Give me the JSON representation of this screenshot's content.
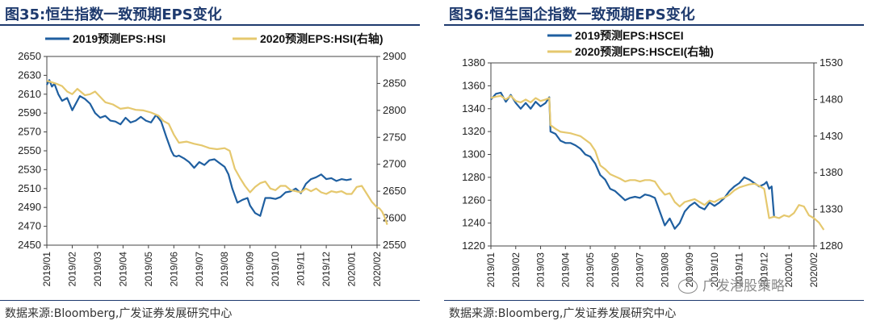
{
  "watermark": "广发港股策略",
  "chart_data": [
    {
      "type": "line",
      "title": "图35:恒生指数一致预期EPS变化",
      "source": "数据来源:Bloomberg,广发证券发展研究中心",
      "x_ticks": [
        "2019/01",
        "2019/02",
        "2019/03",
        "2019/04",
        "2019/05",
        "2019/06",
        "2019/07",
        "2019/08",
        "2019/09",
        "2019/10",
        "2019/11",
        "2019/12",
        "2020/01",
        "2020/02"
      ],
      "y_left": {
        "min": 2450,
        "max": 2650,
        "ticks": [
          2650,
          2630,
          2610,
          2590,
          2570,
          2550,
          2530,
          2510,
          2490,
          2470,
          2450
        ]
      },
      "y_right": {
        "min": 2550,
        "max": 2900,
        "ticks": [
          2900,
          2850,
          2800,
          2750,
          2700,
          2650,
          2600,
          2550
        ]
      },
      "series": [
        {
          "name": "2019预测EPS:HSI",
          "axis": "left",
          "color": "#1f5fa0",
          "x": [
            0,
            0.1,
            0.2,
            0.3,
            0.45,
            0.6,
            0.8,
            1.0,
            1.3,
            1.5,
            1.7,
            1.9,
            2.1,
            2.3,
            2.5,
            2.7,
            2.9,
            3.1,
            3.3,
            3.5,
            3.7,
            3.9,
            4.1,
            4.3,
            4.5,
            4.7,
            4.9,
            5.0,
            5.1,
            5.2,
            5.4,
            5.6,
            5.8,
            6.0,
            6.2,
            6.4,
            6.6,
            6.8,
            7.0,
            7.15,
            7.3,
            7.5,
            7.7,
            7.9,
            8.0,
            8.2,
            8.4,
            8.6,
            8.8,
            9.0,
            9.2,
            9.4,
            9.6,
            9.8,
            10.0,
            10.2,
            10.4,
            10.6,
            10.8,
            11.0,
            11.2,
            11.4,
            11.6,
            11.8,
            12.0
          ],
          "values": [
            2620,
            2625,
            2618,
            2621,
            2610,
            2603,
            2606,
            2593,
            2608,
            2605,
            2600,
            2590,
            2585,
            2587,
            2582,
            2581,
            2578,
            2585,
            2580,
            2582,
            2586,
            2582,
            2580,
            2588,
            2581,
            2565,
            2550,
            2545,
            2544,
            2545,
            2542,
            2538,
            2532,
            2538,
            2535,
            2540,
            2541,
            2537,
            2533,
            2525,
            2510,
            2495,
            2498,
            2500,
            2492,
            2484,
            2481,
            2500,
            2500,
            2499,
            2501,
            2506,
            2507,
            2510,
            2505,
            2515,
            2520,
            2522,
            2525,
            2520,
            2521,
            2518,
            2520,
            2519,
            2520
          ]
        },
        {
          "name": "2020预测EPS:HSI(右轴)",
          "axis": "right",
          "color": "#e5c86e",
          "x": [
            0,
            0.2,
            0.4,
            0.6,
            0.8,
            1.0,
            1.2,
            1.5,
            1.7,
            1.9,
            2.1,
            2.3,
            2.6,
            2.9,
            3.2,
            3.5,
            3.8,
            4.1,
            4.4,
            4.6,
            4.8,
            5.0,
            5.2,
            5.5,
            5.8,
            6.1,
            6.4,
            6.7,
            7.0,
            7.2,
            7.4,
            7.6,
            7.8,
            8.0,
            8.2,
            8.4,
            8.6,
            8.8,
            9.0,
            9.2,
            9.4,
            9.6,
            9.8,
            10.0,
            10.2,
            10.4,
            10.6,
            10.8,
            11.0,
            11.2,
            11.4,
            11.6,
            11.8,
            12.0,
            12.2,
            12.4,
            12.6,
            12.8,
            13.0,
            13.1,
            13.2,
            13.3,
            13.4
          ],
          "values": [
            2855,
            2852,
            2849,
            2845,
            2835,
            2830,
            2840,
            2828,
            2830,
            2835,
            2825,
            2815,
            2811,
            2803,
            2805,
            2801,
            2800,
            2796,
            2790,
            2780,
            2775,
            2755,
            2740,
            2742,
            2738,
            2735,
            2730,
            2728,
            2730,
            2725,
            2692,
            2675,
            2660,
            2648,
            2658,
            2665,
            2668,
            2655,
            2652,
            2660,
            2660,
            2652,
            2650,
            2648,
            2655,
            2650,
            2655,
            2648,
            2645,
            2650,
            2648,
            2650,
            2645,
            2645,
            2658,
            2660,
            2645,
            2630,
            2620,
            2618,
            2612,
            2602,
            2588
          ]
        }
      ]
    },
    {
      "type": "line",
      "title": "图36:恒生国企指数一致预期EPS变化",
      "source": "数据来源:Bloomberg,广发证券发展研究中心",
      "x_ticks": [
        "2019/01",
        "2019/02",
        "2019/03",
        "2019/04",
        "2019/05",
        "2019/06",
        "2019/07",
        "2019/08",
        "2019/09",
        "2019/10",
        "2019/11",
        "2019/12",
        "2020/01",
        "2020/02"
      ],
      "y_left": {
        "min": 1220,
        "max": 1380,
        "ticks": [
          1380,
          1360,
          1340,
          1320,
          1300,
          1280,
          1260,
          1240,
          1220
        ]
      },
      "y_right": {
        "min": 1280,
        "max": 1530,
        "ticks": [
          1530,
          1480,
          1430,
          1380,
          1330,
          1280
        ]
      },
      "series": [
        {
          "name": "2019预测EPS:HSCEI",
          "axis": "left",
          "color": "#1f5fa0",
          "x": [
            0,
            0.2,
            0.4,
            0.6,
            0.8,
            1.0,
            1.2,
            1.4,
            1.6,
            1.8,
            2.0,
            2.2,
            2.35,
            2.4,
            2.6,
            2.8,
            3.0,
            3.2,
            3.4,
            3.6,
            3.8,
            4.0,
            4.2,
            4.4,
            4.6,
            4.8,
            5.0,
            5.2,
            5.4,
            5.6,
            5.8,
            6.0,
            6.2,
            6.4,
            6.6,
            6.8,
            7.0,
            7.2,
            7.4,
            7.6,
            7.8,
            8.0,
            8.2,
            8.4,
            8.6,
            8.8,
            9.0,
            9.2,
            9.4,
            9.6,
            9.8,
            10.0,
            10.2,
            10.4,
            10.6,
            10.8,
            11.0,
            11.1,
            11.2,
            11.3,
            11.4
          ],
          "values": [
            1348,
            1353,
            1354,
            1346,
            1352,
            1345,
            1340,
            1345,
            1340,
            1346,
            1342,
            1345,
            1350,
            1320,
            1318,
            1312,
            1310,
            1310,
            1308,
            1305,
            1300,
            1298,
            1292,
            1282,
            1278,
            1270,
            1268,
            1264,
            1260,
            1262,
            1263,
            1262,
            1265,
            1264,
            1262,
            1250,
            1238,
            1244,
            1235,
            1240,
            1250,
            1255,
            1258,
            1254,
            1252,
            1258,
            1255,
            1258,
            1262,
            1268,
            1272,
            1275,
            1280,
            1278,
            1275,
            1272,
            1274,
            1276,
            1270,
            1272,
            1245
          ]
        },
        {
          "name": "2020预测EPS:HSCEI(右轴)",
          "axis": "right",
          "color": "#e5c86e",
          "x": [
            0,
            0.2,
            0.4,
            0.6,
            0.8,
            1.0,
            1.2,
            1.4,
            1.6,
            1.8,
            2.0,
            2.2,
            2.35,
            2.4,
            2.6,
            2.8,
            3.0,
            3.2,
            3.4,
            3.6,
            3.8,
            4.0,
            4.2,
            4.4,
            4.6,
            4.8,
            5.0,
            5.2,
            5.4,
            5.6,
            5.8,
            6.0,
            6.2,
            6.4,
            6.6,
            6.8,
            7.0,
            7.2,
            7.4,
            7.6,
            7.8,
            8.0,
            8.2,
            8.4,
            8.6,
            8.8,
            9.0,
            9.2,
            9.4,
            9.6,
            9.8,
            10.0,
            10.2,
            10.4,
            10.6,
            10.8,
            11.0,
            11.2,
            11.4,
            11.6,
            11.8,
            12.0,
            12.2,
            12.4,
            12.6,
            12.8,
            13.0,
            13.2,
            13.4
          ],
          "values": [
            1482,
            1484,
            1485,
            1480,
            1485,
            1478,
            1476,
            1480,
            1476,
            1482,
            1478,
            1480,
            1482,
            1445,
            1440,
            1436,
            1435,
            1434,
            1432,
            1430,
            1425,
            1420,
            1410,
            1390,
            1385,
            1378,
            1375,
            1372,
            1368,
            1370,
            1370,
            1368,
            1370,
            1370,
            1368,
            1358,
            1350,
            1352,
            1340,
            1334,
            1340,
            1342,
            1344,
            1340,
            1336,
            1342,
            1340,
            1344,
            1346,
            1350,
            1356,
            1360,
            1362,
            1364,
            1365,
            1362,
            1358,
            1318,
            1320,
            1318,
            1322,
            1320,
            1325,
            1336,
            1334,
            1322,
            1318,
            1312,
            1302
          ]
        }
      ]
    }
  ]
}
